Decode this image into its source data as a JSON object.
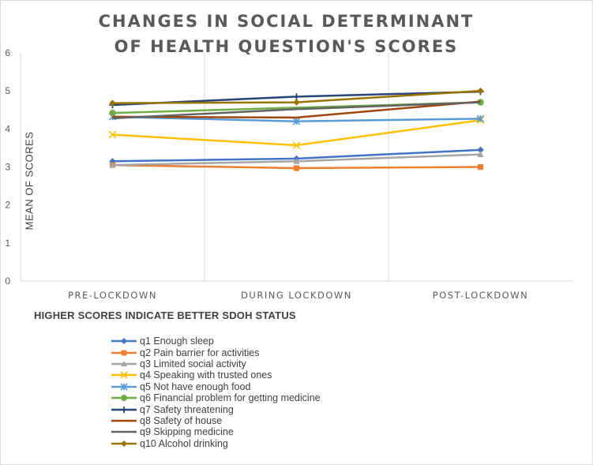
{
  "chart_data": {
    "type": "line",
    "title_lines": [
      "CHANGES IN SOCIAL DETERMINANT",
      "OF HEALTH QUESTION'S SCORES"
    ],
    "xlabel": "",
    "ylabel": "MEAN OF SCORES",
    "note": "HIGHER SCORES INDICATE BETTER SDOH STATUS",
    "categories": [
      "PRE-LOCKDOWN",
      "DURING LOCKDOWN",
      "POST-LOCKDOWN"
    ],
    "ylim": [
      0,
      6
    ],
    "yticks": [
      0,
      1,
      2,
      3,
      4,
      5,
      6
    ],
    "grid": "vertical",
    "legend_position": "bottom-left",
    "series": [
      {
        "name": "q1 Enough sleep",
        "color": "#4472C4",
        "marker": "diamond",
        "values": [
          3.15,
          3.22,
          3.45
        ]
      },
      {
        "name": "q2 Pain barrier for activities",
        "color": "#ED7D31",
        "marker": "square",
        "values": [
          3.05,
          2.97,
          3.0
        ]
      },
      {
        "name": "q3 Limited social activity",
        "color": "#A5A5A5",
        "marker": "triangle",
        "values": [
          3.05,
          3.15,
          3.33
        ]
      },
      {
        "name": "q4 Speaking with trusted ones",
        "color": "#FFC000",
        "marker": "x",
        "values": [
          3.85,
          3.57,
          4.23
        ]
      },
      {
        "name": "q5 Not have enough food",
        "color": "#5B9BD5",
        "marker": "asterisk",
        "values": [
          4.32,
          4.2,
          4.27
        ]
      },
      {
        "name": "q6 Financial problem for getting medicine",
        "color": "#70AD47",
        "marker": "circle",
        "values": [
          4.42,
          null,
          4.7
        ]
      },
      {
        "name": "q7 Safety threatening",
        "color": "#264478",
        "marker": "plus",
        "values": [
          4.63,
          4.85,
          4.98
        ]
      },
      {
        "name": "q8 Safety of house",
        "color": "#9E480E",
        "marker": "none",
        "values": [
          4.32,
          4.3,
          4.72
        ]
      },
      {
        "name": "q9 Skipping medicine",
        "color": "#636363",
        "marker": "none",
        "values": [
          4.28,
          4.52,
          4.7
        ]
      },
      {
        "name": "q10 Alcohol drinking",
        "color": "#997300",
        "marker": "diamond",
        "values": [
          4.68,
          4.7,
          5.0
        ]
      }
    ]
  }
}
